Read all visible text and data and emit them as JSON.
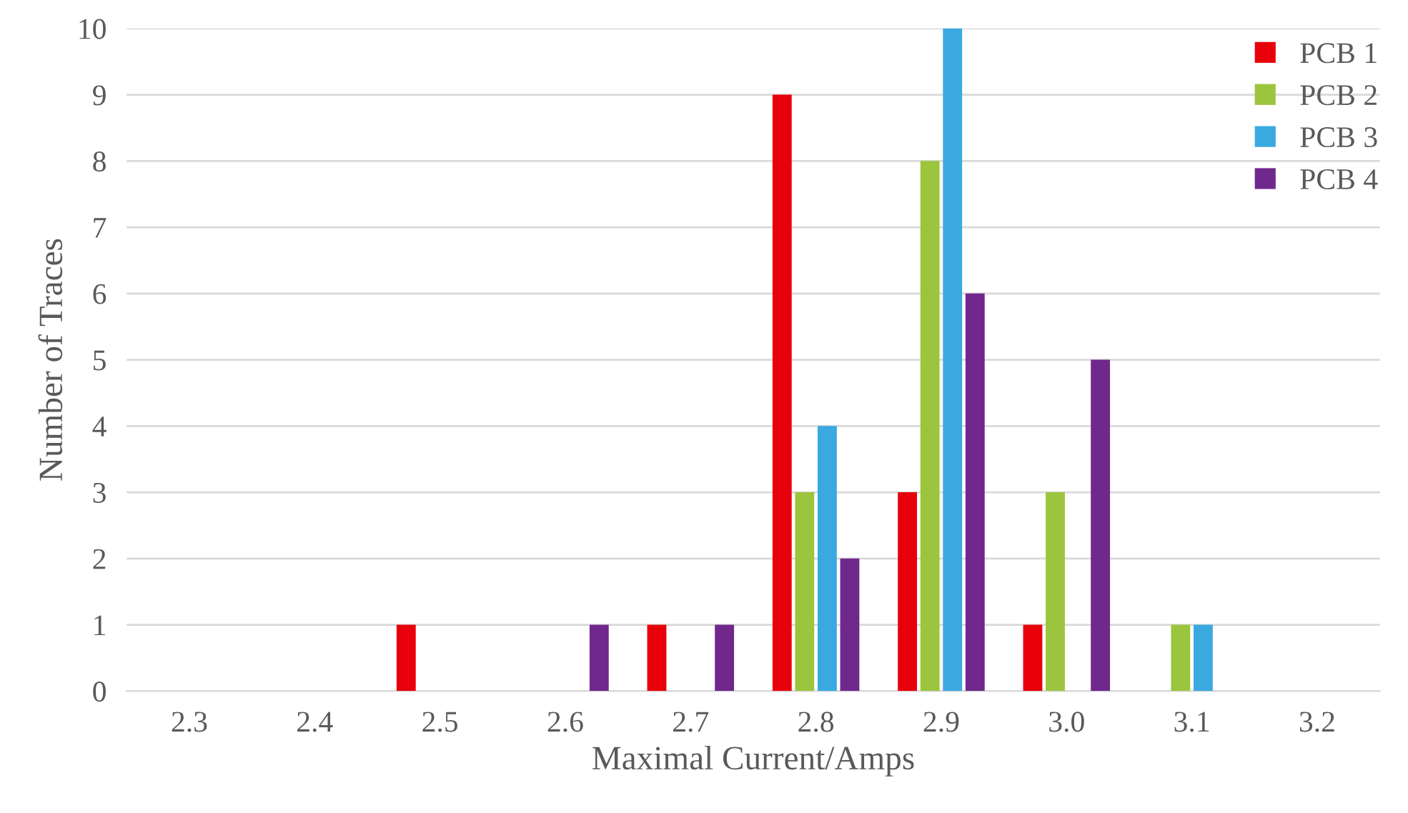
{
  "chart_data": {
    "type": "bar",
    "xlabel": "Maximal Current/Amps",
    "ylabel": "Number of Traces",
    "categories": [
      "2.3",
      "2.4",
      "2.5",
      "2.6",
      "2.7",
      "2.8",
      "2.9",
      "3.0",
      "3.1",
      "3.2"
    ],
    "series": [
      {
        "name": "PCB 1",
        "color": "#e8000b",
        "values": [
          0,
          0,
          1,
          0,
          1,
          9,
          3,
          1,
          0,
          0
        ]
      },
      {
        "name": "PCB 2",
        "color": "#9bc53d",
        "values": [
          0,
          0,
          0,
          0,
          0,
          3,
          8,
          3,
          1,
          0
        ]
      },
      {
        "name": "PCB 3",
        "color": "#3aa9e0",
        "values": [
          0,
          0,
          0,
          0,
          0,
          4,
          10,
          0,
          1,
          0
        ]
      },
      {
        "name": "PCB 4",
        "color": "#70288c",
        "values": [
          0,
          0,
          0,
          1,
          1,
          2,
          6,
          5,
          0,
          0
        ]
      }
    ],
    "ylim": [
      0,
      10
    ],
    "yticks": [
      0,
      1,
      2,
      3,
      4,
      5,
      6,
      7,
      8,
      9,
      10
    ],
    "grid": "y",
    "legend": "top right"
  }
}
